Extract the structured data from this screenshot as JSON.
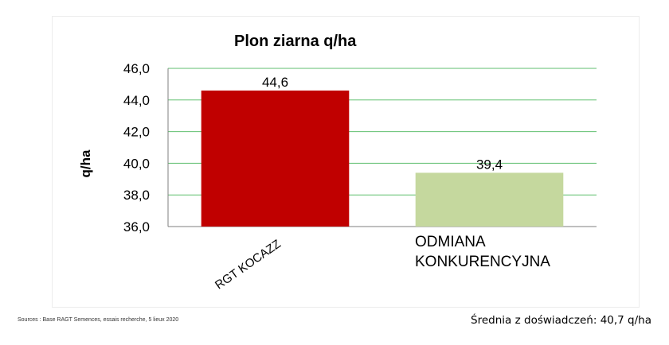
{
  "chart_data": {
    "type": "bar",
    "title": "Plon ziarna q/ha",
    "ylabel": "q/ha",
    "xlabel": "",
    "ylim": [
      36,
      46
    ],
    "yticks": [
      "46,0",
      "44,0",
      "42,0",
      "40,0",
      "38,0",
      "36,0"
    ],
    "grid": true,
    "categories": [
      "RGT KOCAZZ",
      "ODMIANA KONKURENCYJNA"
    ],
    "category_lines": [
      [
        "RGT KOCAZZ"
      ],
      [
        "ODMIANA",
        "KONKURENCYJNA"
      ]
    ],
    "values": [
      44.6,
      39.4
    ],
    "data_labels": [
      "44,6",
      "39,4"
    ],
    "colors": [
      "#c00000",
      "#c5d89e"
    ],
    "grid_color": "#5fbf6f"
  },
  "footer": {
    "source": "Sources : Base RAGT Semences, essais recherche, 5 lieux 2020",
    "average": "Średnia z doświadczeń: 40,7 q/ha"
  }
}
